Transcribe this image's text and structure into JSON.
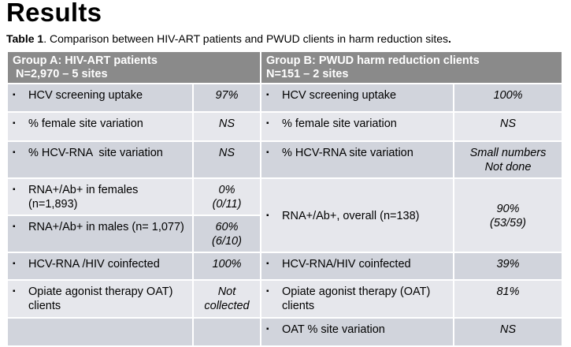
{
  "heading": "Results",
  "caption": {
    "label": "Table 1",
    "text": ". Comparison between HIV-ART patients and PWUD clients in harm reduction sites",
    "end": "."
  },
  "table": {
    "group_a": {
      "line1": "Group A: HIV-ART patients",
      "line2": " N=2,970 – 5 sites"
    },
    "group_b": {
      "line1": "Group B: PWUD harm reduction clients",
      "line2": "N=151 – 2 sites"
    },
    "bullet": "▪",
    "a_rows": [
      {
        "label": "HCV screening uptake",
        "value": "97%"
      },
      {
        "label": "% female site variation",
        "value": "NS"
      },
      {
        "label": "% HCV-RNA  site variation",
        "value": "NS"
      },
      {
        "label": "RNA+/Ab+ in females (n=1,893)",
        "value_line1": "0%",
        "value_line2": "(0/11)"
      },
      {
        "label": "RNA+/Ab+ in males (n= 1,077)",
        "value_line1": "60%",
        "value_line2": "(6/10)"
      },
      {
        "label": "HCV-RNA /HIV coinfected",
        "value": "100%"
      },
      {
        "label": "Opiate agonist therapy OAT) clients",
        "value_line1": "Not",
        "value_line2": "collected"
      }
    ],
    "b_rows": [
      {
        "label": "HCV screening uptake",
        "value": "100%"
      },
      {
        "label": "% female site variation",
        "value": "NS"
      },
      {
        "label": "% HCV-RNA site variation",
        "value_line1": "Small numbers",
        "value_line2": "Not done"
      },
      {
        "label": "RNA+/Ab+, overall (n=138)",
        "value_line1": "90%",
        "value_line2": "(53/59)"
      },
      {
        "label": "HCV-RNA/HIV coinfected",
        "value": "39%"
      },
      {
        "label": "Opiate agonist therapy (OAT) clients",
        "value": "81%"
      },
      {
        "label": "OAT % site variation",
        "value": "NS"
      }
    ]
  }
}
